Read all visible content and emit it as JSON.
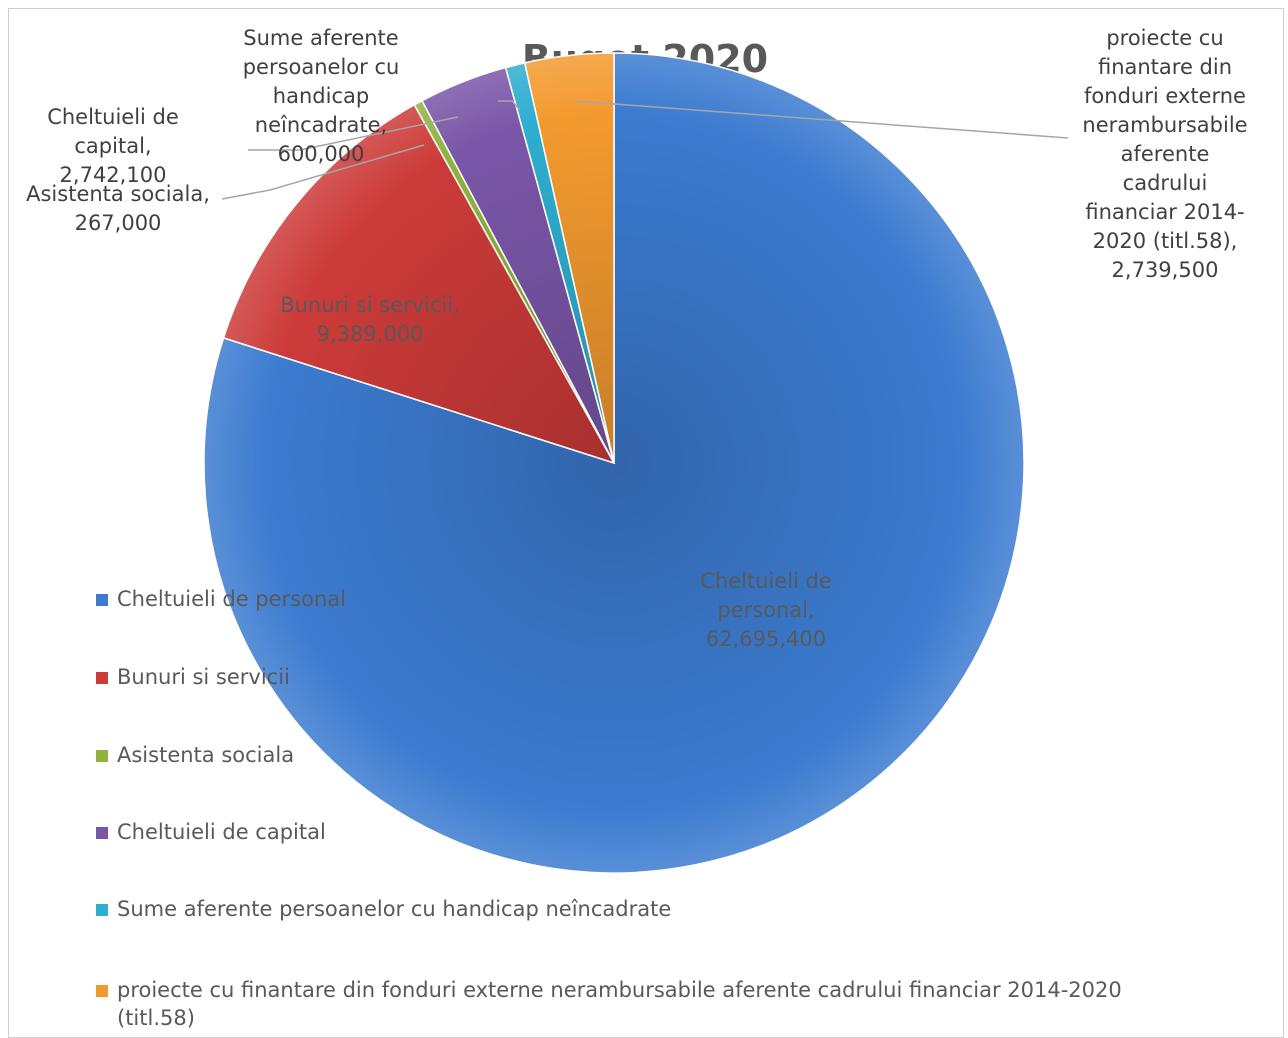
{
  "chart_data": {
    "type": "pie",
    "title": "Buget 2020",
    "legend_position": "left",
    "slices": [
      {
        "category": "Cheltuieli de personal",
        "value": 62695400,
        "label_lines": [
          "Cheltuieli de",
          "personal,",
          "62,695,400"
        ],
        "color": "#3c7bd0"
      },
      {
        "category": "Bunuri si servicii",
        "value": 9389000,
        "label_lines": [
          "Bunuri si servicii,",
          "9,389,000"
        ],
        "color": "#cc3b39"
      },
      {
        "category": "Asistenta sociala",
        "value": 267000,
        "label_lines": [
          "Asistenta sociala,",
          "267,000"
        ],
        "color": "#8fb33e"
      },
      {
        "category": "Cheltuieli de capital",
        "value": 2742100,
        "label_lines": [
          "Cheltuieli de",
          "capital,",
          "2,742,100"
        ],
        "color": "#7a56a8"
      },
      {
        "category": "Sume aferente persoanelor cu handicap neîncadrate",
        "value": 600000,
        "label_lines": [
          "Sume aferente",
          "persoanelor cu",
          "handicap",
          "neîncadrate,",
          "600,000"
        ],
        "color": "#2eaed0"
      },
      {
        "category": "proiecte cu finantare din fonduri externe nerambursabile aferente cadrului financiar 2014-2020 (titl.58)",
        "value": 2739500,
        "label_lines": [
          "proiecte cu",
          "finantare din",
          "fonduri externe",
          "nerambursabile",
          "aferente",
          "cadrului",
          "financiar 2014-",
          "2020 (titl.58),",
          "2,739,500"
        ],
        "color": "#f39a2f"
      }
    ],
    "legend": [
      {
        "text": "Cheltuieli de personal",
        "color": "#3c7bd0"
      },
      {
        "text": "Bunuri si servicii",
        "color": "#cc3b39"
      },
      {
        "text": "Asistenta sociala",
        "color": "#8fb33e"
      },
      {
        "text": "Cheltuieli de capital",
        "color": "#7a56a8"
      },
      {
        "text": "Sume aferente persoanelor cu handicap neîncadrate",
        "color": "#2eaed0"
      },
      {
        "text_lines": [
          "proiecte cu finantare din fonduri externe nerambursabile aferente cadrului financiar 2014-2020",
          "(titl.58)"
        ],
        "color": "#f39a2f"
      }
    ]
  }
}
